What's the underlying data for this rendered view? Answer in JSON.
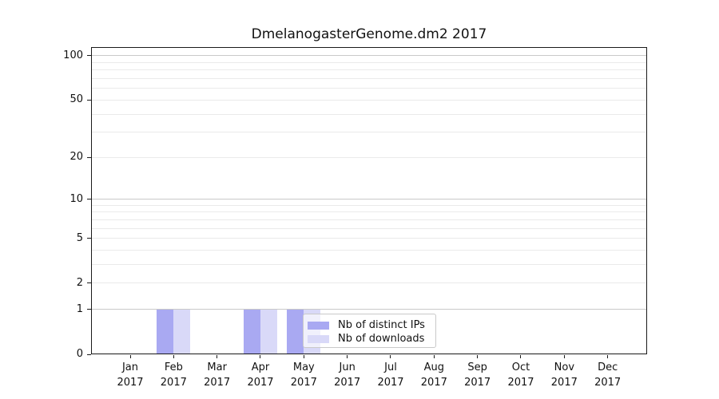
{
  "chart_data": {
    "type": "bar",
    "title": "DmelanogasterGenome.dm2 2017",
    "year_label": "2017",
    "categories": [
      "Jan",
      "Feb",
      "Mar",
      "Apr",
      "May",
      "Jun",
      "Jul",
      "Aug",
      "Sep",
      "Oct",
      "Nov",
      "Dec"
    ],
    "series": [
      {
        "name": "Nb of distinct IPs",
        "color": "#a9a9f2",
        "values": [
          0,
          1,
          0,
          1,
          1,
          0,
          0,
          0,
          0,
          0,
          0,
          0
        ]
      },
      {
        "name": "Nb of downloads",
        "color": "#d9d9f8",
        "values": [
          0,
          1,
          0,
          1,
          1,
          0,
          0,
          0,
          0,
          0,
          0,
          0
        ]
      }
    ],
    "yscale": "log1p",
    "ylim": [
      0,
      113
    ],
    "ytick_values": [
      0,
      1,
      2,
      5,
      10,
      20,
      50,
      100
    ],
    "major_grid_values": [
      1,
      10,
      100
    ],
    "minor_grid_values": [
      2,
      3,
      4,
      5,
      6,
      7,
      8,
      9,
      20,
      30,
      40,
      50,
      60,
      70,
      80,
      90
    ],
    "grid": "on",
    "legend_position": "lower center-left, overlapping May bars",
    "colors": {
      "bar_ips": "#a9a9f2",
      "bar_downloads": "#d9d9f8",
      "major_grid": "#c9c9c9",
      "minor_grid": "#eaeaea",
      "spine": "#1a1a1a",
      "legend_border": "#c9c9c9"
    }
  }
}
